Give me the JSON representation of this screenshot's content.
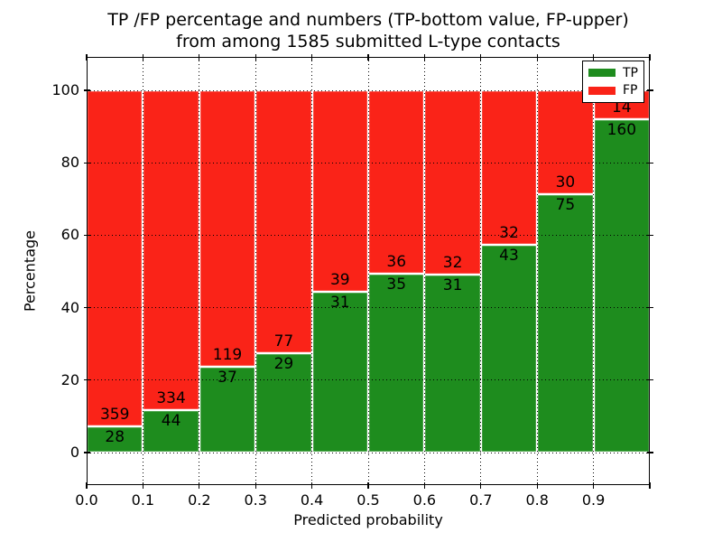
{
  "figure": {
    "title_line1": "TP /FP percentage and numbers (TP-bottom value, FP-upper)",
    "title_line2": "from among 1585 submitted L-type contacts"
  },
  "chart_data": {
    "type": "bar",
    "stacked": true,
    "normalized": "each bin scaled to 100%",
    "title": "TP /FP percentage and numbers (TP-bottom value, FP-upper) from among 1585 submitted L-type contacts",
    "xlabel": "Predicted probability",
    "ylabel": "Percentage",
    "total_contacts": 1585,
    "categories": [
      "0.0-0.1",
      "0.1-0.2",
      "0.2-0.3",
      "0.3-0.4",
      "0.4-0.5",
      "0.5-0.6",
      "0.6-0.7",
      "0.7-0.8",
      "0.8-0.9",
      "0.9-1.0"
    ],
    "x_tick_labels": [
      "0.0",
      "0.1",
      "0.2",
      "0.3",
      "0.4",
      "0.5",
      "0.6",
      "0.7",
      "0.8",
      "0.9"
    ],
    "y_ticks": [
      0,
      20,
      40,
      60,
      80,
      100
    ],
    "y_tick_labels": [
      "0",
      "20",
      "40",
      "60",
      "80",
      "100"
    ],
    "xlim": [
      0.0,
      1.0
    ],
    "ylim_percent": [
      -9,
      109
    ],
    "grid": "dotted black, both axes, on top of bars",
    "series": [
      {
        "name": "TP",
        "position": "bottom",
        "color": "#1e8c1e",
        "counts": [
          28,
          44,
          37,
          29,
          31,
          35,
          31,
          43,
          75,
          160
        ]
      },
      {
        "name": "FP",
        "position": "top",
        "color": "#fa2318",
        "counts": [
          359,
          334,
          119,
          77,
          39,
          36,
          32,
          32,
          30,
          14
        ]
      }
    ],
    "tp_percent_approx": [
      7.2,
      11.6,
      23.7,
      27.4,
      44.3,
      49.3,
      49.2,
      57.3,
      71.4,
      92.0
    ],
    "legend": {
      "position": "upper right",
      "entries": [
        {
          "label": "TP",
          "color": "#1e8c1e"
        },
        {
          "label": "FP",
          "color": "#fa2318"
        }
      ]
    }
  },
  "colors": {
    "tp_green": "#1e8c1e",
    "fp_red": "#fa2318",
    "grid_line": "#000000",
    "background": "#ffffff",
    "bar_edge": "#ffffff"
  }
}
